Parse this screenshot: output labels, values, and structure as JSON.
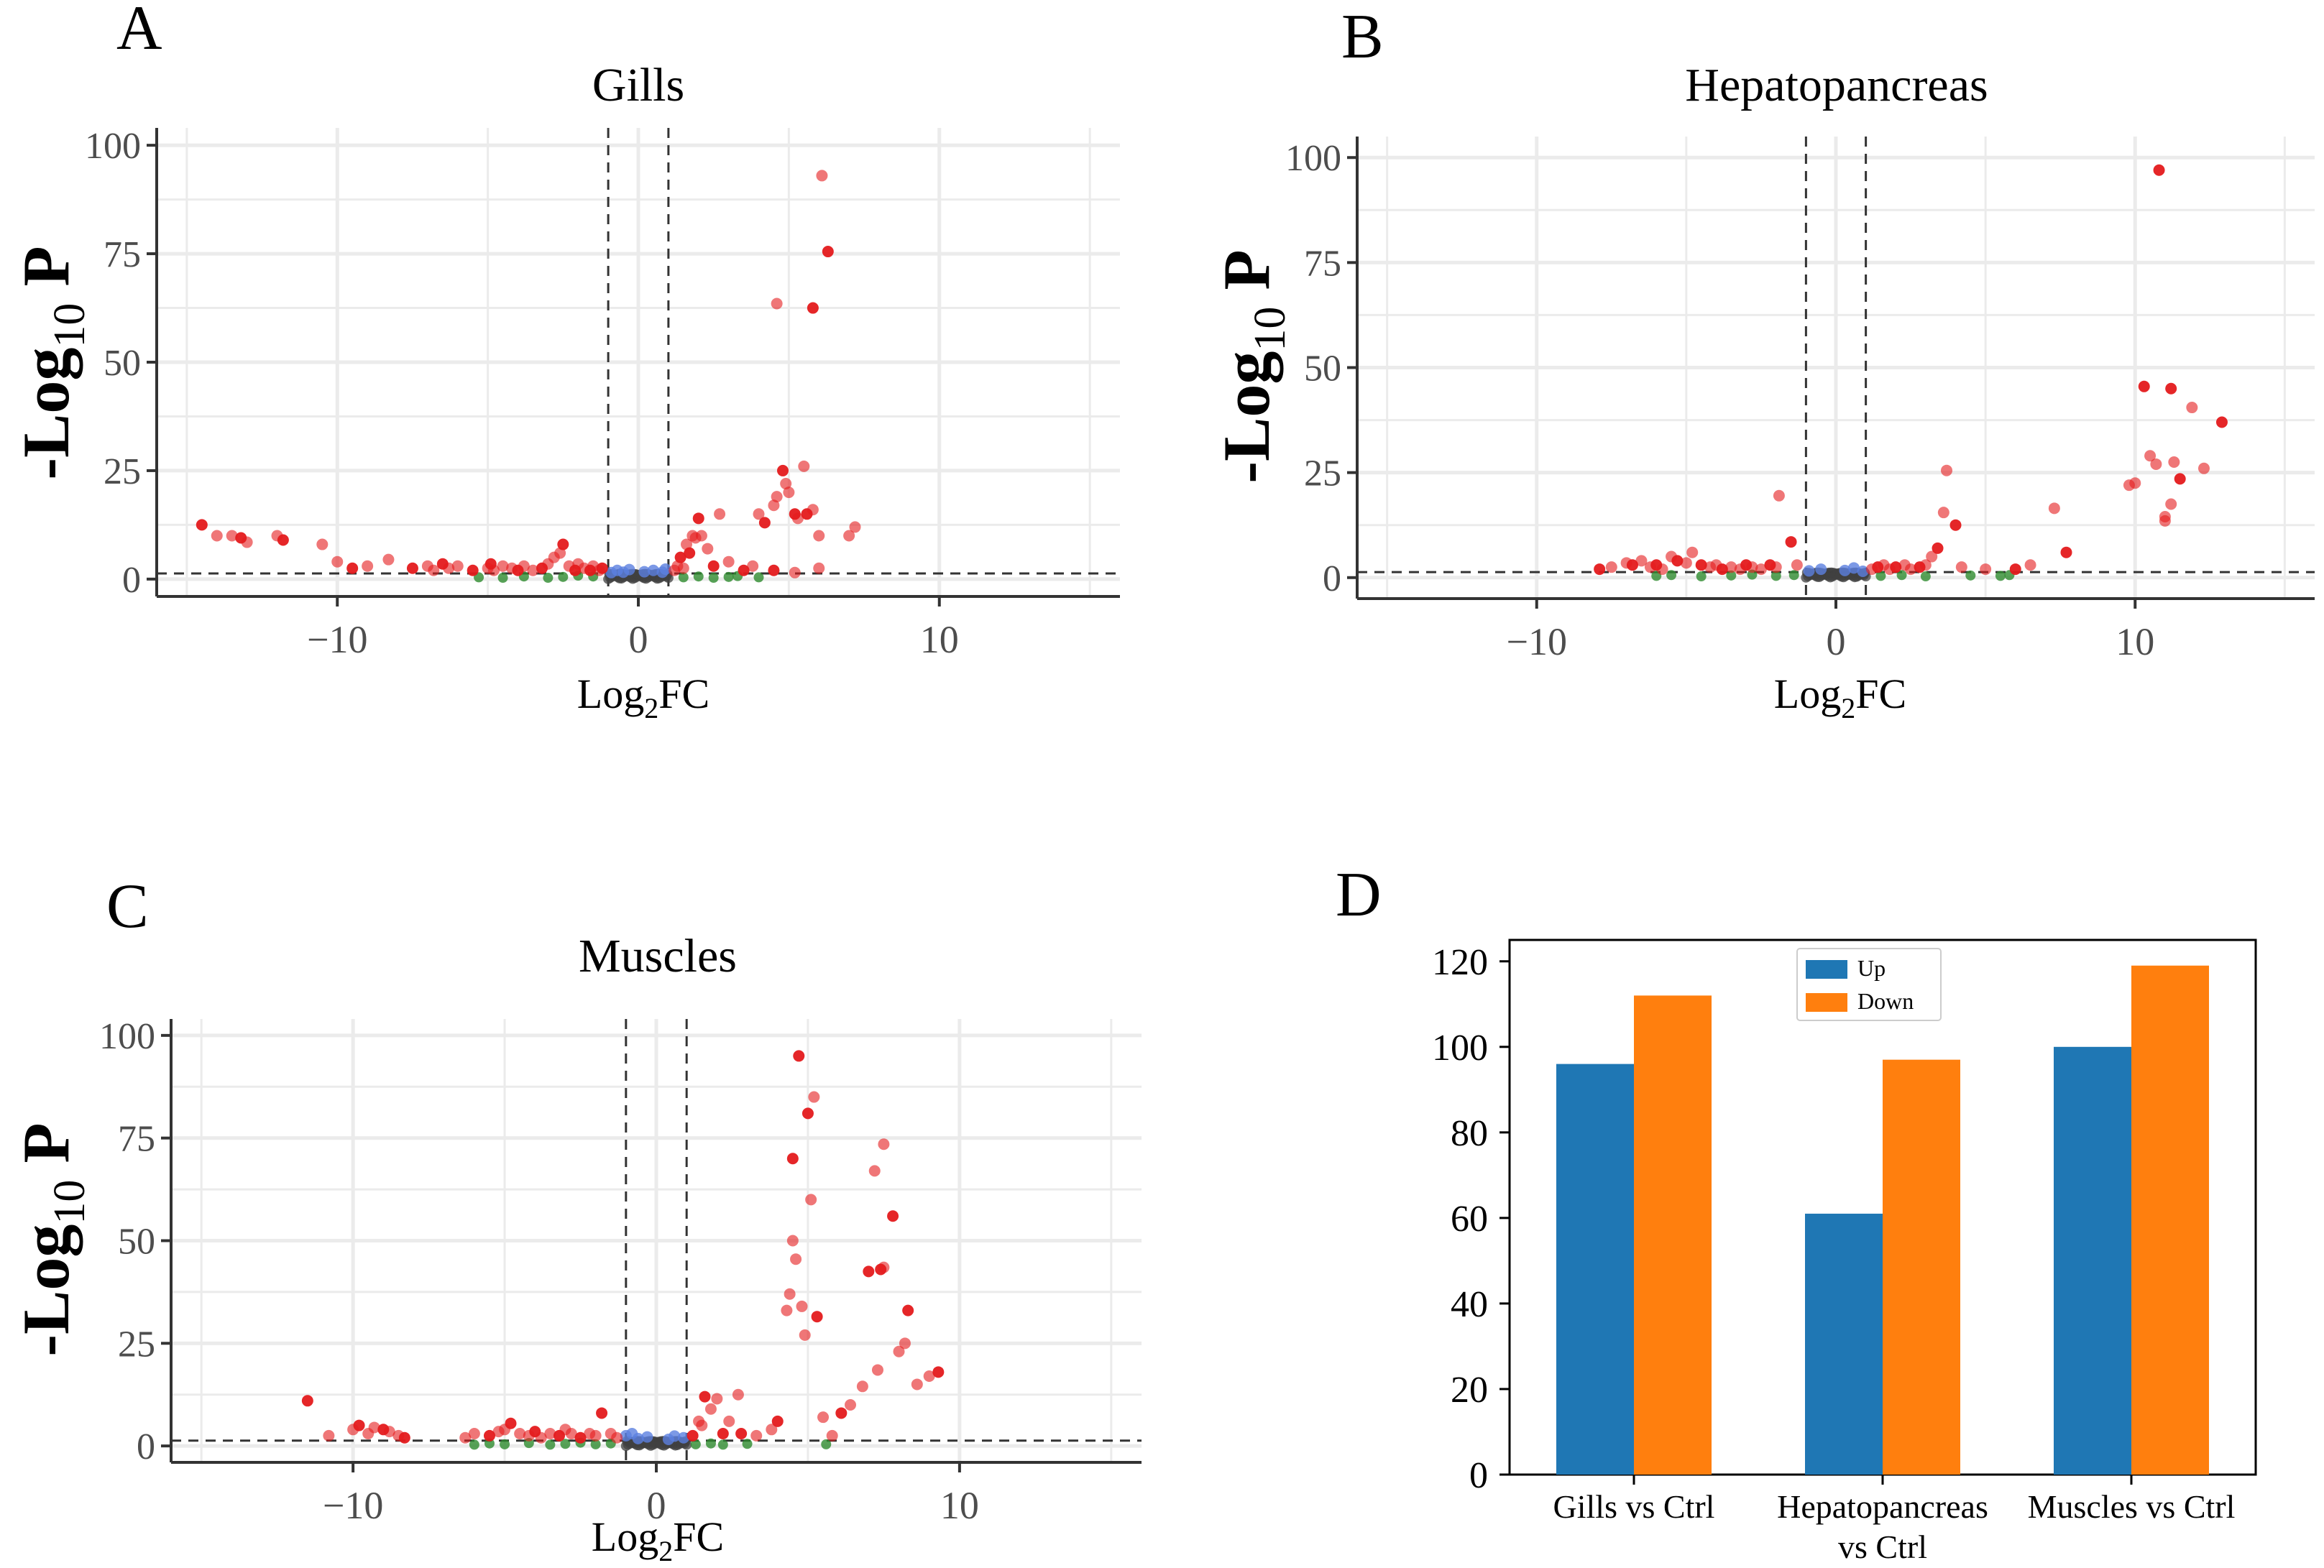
{
  "figure": {
    "panels": [
      "A",
      "B",
      "C",
      "D"
    ]
  },
  "colors": {
    "sig_up": "#e41a1c",
    "sig_fc_only": "#2e8b2e",
    "p_only": "#5b7fe0",
    "ns": "#404040",
    "bar_up": "#1f77b4",
    "bar_down": "#ff7f0e",
    "grid": "#ebebeb"
  },
  "chart_data": [
    {
      "type": "scatter",
      "panel": "A",
      "title": "Gills",
      "xlabel": "Log2FC",
      "xlabel_main": "Log",
      "xlabel_sub": "2",
      "xlabel_tail": "FC",
      "ylabel_prefix": "-Log",
      "ylabel_sub": "10",
      "ylabel_tail": "P",
      "xlim": [
        -16,
        16
      ],
      "ylim": [
        -4,
        104
      ],
      "xticks": [
        -10,
        0,
        10
      ],
      "xtick_labels": [
        "−10",
        "0",
        "10"
      ],
      "yticks": [
        0,
        25,
        50,
        75,
        100
      ],
      "ytick_labels": [
        "0",
        "25",
        "50",
        "75",
        "100"
      ],
      "fc_cutoff": [
        -1,
        1
      ],
      "p_cutoff": 1.3,
      "points": [
        [
          -14.5,
          12.5
        ],
        [
          -14,
          10
        ],
        [
          -13.5,
          10
        ],
        [
          -13.2,
          9.5
        ],
        [
          -13,
          8.5
        ],
        [
          -12,
          10
        ],
        [
          -11.8,
          9
        ],
        [
          -10.5,
          8
        ],
        [
          -10,
          4
        ],
        [
          -9.5,
          2.5
        ],
        [
          -9,
          3
        ],
        [
          -8.3,
          4.5
        ],
        [
          -7.5,
          2.5
        ],
        [
          -7,
          3
        ],
        [
          -6.8,
          2
        ],
        [
          -6.5,
          3.5
        ],
        [
          -6.3,
          2.5
        ],
        [
          -6,
          3
        ],
        [
          -5.5,
          2
        ],
        [
          -5,
          2.5
        ],
        [
          -4.8,
          2
        ],
        [
          -4.9,
          3.5
        ],
        [
          -4.5,
          3
        ],
        [
          -4.2,
          2.5
        ],
        [
          -4,
          2
        ],
        [
          -3.8,
          3
        ],
        [
          -3.5,
          2
        ],
        [
          -3.2,
          2.5
        ],
        [
          -3,
          3.5
        ],
        [
          -2.8,
          5
        ],
        [
          -2.5,
          8
        ],
        [
          -2.6,
          6
        ],
        [
          -2.3,
          3
        ],
        [
          -2.1,
          2
        ],
        [
          -2,
          3.5
        ],
        [
          -1.8,
          2.5
        ],
        [
          -1.6,
          2
        ],
        [
          -1.5,
          3
        ],
        [
          -1.3,
          2
        ],
        [
          -1.2,
          2.5
        ],
        [
          1.2,
          2
        ],
        [
          1.3,
          3
        ],
        [
          1.4,
          5
        ],
        [
          1.5,
          2.5
        ],
        [
          1.6,
          8
        ],
        [
          1.7,
          6
        ],
        [
          1.8,
          10
        ],
        [
          1.9,
          9.5
        ],
        [
          2,
          14
        ],
        [
          2.1,
          10
        ],
        [
          2.3,
          7
        ],
        [
          2.5,
          3
        ],
        [
          2.7,
          15
        ],
        [
          3,
          4
        ],
        [
          3.5,
          2
        ],
        [
          3.8,
          3
        ],
        [
          4,
          15
        ],
        [
          4.2,
          13
        ],
        [
          4.5,
          17
        ],
        [
          4.6,
          19
        ],
        [
          4.8,
          25
        ],
        [
          4.9,
          22
        ],
        [
          5,
          20
        ],
        [
          5.2,
          15
        ],
        [
          5.3,
          14
        ],
        [
          5.5,
          26
        ],
        [
          5.6,
          15
        ],
        [
          5.8,
          16
        ],
        [
          4.6,
          63.5
        ],
        [
          5.8,
          62.5
        ],
        [
          6,
          10
        ],
        [
          6.1,
          93
        ],
        [
          6.3,
          75.5
        ],
        [
          7,
          10
        ],
        [
          7.2,
          12
        ],
        [
          4.5,
          2
        ],
        [
          5.2,
          1.5
        ],
        [
          6,
          2.5
        ]
      ],
      "p_only_points": [
        [
          -0.9,
          1.5
        ],
        [
          -0.7,
          2
        ],
        [
          -0.5,
          1.6
        ],
        [
          -0.3,
          2.2
        ],
        [
          0.2,
          1.7
        ],
        [
          0.5,
          2
        ],
        [
          0.8,
          1.6
        ],
        [
          0.9,
          2.3
        ]
      ],
      "fc_only_points": [
        [
          -5.3,
          0.4
        ],
        [
          -4.5,
          0.3
        ],
        [
          -3.8,
          0.6
        ],
        [
          -3,
          0.3
        ],
        [
          -2.5,
          0.5
        ],
        [
          -2,
          0.8
        ],
        [
          -1.5,
          0.6
        ],
        [
          1.5,
          0.4
        ],
        [
          2,
          0.6
        ],
        [
          2.5,
          0.3
        ],
        [
          3,
          0.5
        ],
        [
          3.3,
          0.7
        ],
        [
          4,
          0.4
        ]
      ]
    },
    {
      "type": "scatter",
      "panel": "B",
      "title": "Hepatopancreas",
      "xlabel": "Log2FC",
      "xlabel_main": "Log",
      "xlabel_sub": "2",
      "xlabel_tail": "FC",
      "ylabel_prefix": "-Log",
      "ylabel_sub": "10",
      "ylabel_tail": "P",
      "xlim": [
        -16,
        16
      ],
      "ylim": [
        -5,
        105
      ],
      "xticks": [
        -10,
        0,
        10
      ],
      "xtick_labels": [
        "−10",
        "0",
        "10"
      ],
      "yticks": [
        0,
        25,
        50,
        75,
        100
      ],
      "ytick_labels": [
        "0",
        "25",
        "50",
        "75",
        "100"
      ],
      "fc_cutoff": [
        -1,
        1
      ],
      "p_cutoff": 1.3,
      "points": [
        [
          -7.9,
          2
        ],
        [
          -7.5,
          2.5
        ],
        [
          -7,
          3.5
        ],
        [
          -6.8,
          3
        ],
        [
          -6.5,
          4
        ],
        [
          -6.2,
          2.5
        ],
        [
          -6,
          3
        ],
        [
          -5.8,
          2
        ],
        [
          -5.5,
          5
        ],
        [
          -5.3,
          4
        ],
        [
          -5,
          3.5
        ],
        [
          -4.8,
          6
        ],
        [
          -4.5,
          3
        ],
        [
          -4.2,
          2.5
        ],
        [
          -4,
          3
        ],
        [
          -3.8,
          2
        ],
        [
          -3.5,
          2.5
        ],
        [
          -3.2,
          2
        ],
        [
          -3,
          3
        ],
        [
          -2.8,
          2.5
        ],
        [
          -2.5,
          2
        ],
        [
          -2.2,
          3
        ],
        [
          -2,
          2.5
        ],
        [
          -1.9,
          19.5
        ],
        [
          -1.5,
          8.5
        ],
        [
          -1.3,
          3
        ],
        [
          1.2,
          2
        ],
        [
          1.4,
          2.5
        ],
        [
          1.6,
          3
        ],
        [
          1.8,
          2
        ],
        [
          2,
          2.5
        ],
        [
          2.3,
          3
        ],
        [
          2.5,
          2
        ],
        [
          2.8,
          2.5
        ],
        [
          3,
          3
        ],
        [
          3.2,
          5
        ],
        [
          3.4,
          7
        ],
        [
          3.6,
          15.5
        ],
        [
          3.7,
          25.5
        ],
        [
          4,
          12.5
        ],
        [
          4.2,
          2.5
        ],
        [
          5,
          2
        ],
        [
          6,
          2
        ],
        [
          6.5,
          3
        ],
        [
          7.3,
          16.5
        ],
        [
          7.7,
          6
        ],
        [
          9.8,
          22
        ],
        [
          10,
          22.5
        ],
        [
          10.3,
          45.5
        ],
        [
          10.5,
          29
        ],
        [
          10.7,
          27
        ],
        [
          10.8,
          97
        ],
        [
          11,
          14.5
        ],
        [
          11,
          13.5
        ],
        [
          11.2,
          45
        ],
        [
          11.2,
          17.5
        ],
        [
          11.3,
          27.5
        ],
        [
          11.5,
          23.5
        ],
        [
          11.9,
          40.5
        ],
        [
          12.3,
          26
        ],
        [
          12.9,
          37
        ]
      ],
      "p_only_points": [
        [
          -0.9,
          1.6
        ],
        [
          -0.5,
          2
        ],
        [
          0.3,
          1.7
        ],
        [
          0.6,
          2.3
        ],
        [
          0.9,
          1.5
        ]
      ],
      "fc_only_points": [
        [
          -6,
          0.4
        ],
        [
          -5.5,
          0.6
        ],
        [
          -4.5,
          0.3
        ],
        [
          -3.5,
          0.5
        ],
        [
          -2.8,
          0.7
        ],
        [
          -2,
          0.4
        ],
        [
          -1.4,
          0.6
        ],
        [
          1.5,
          0.4
        ],
        [
          2.2,
          0.6
        ],
        [
          3,
          0.3
        ],
        [
          4.5,
          0.5
        ],
        [
          5.5,
          0.4
        ],
        [
          5.8,
          0.6
        ]
      ]
    },
    {
      "type": "scatter",
      "panel": "C",
      "title": "Muscles",
      "xlabel": "Log2FC",
      "xlabel_main": "Log",
      "xlabel_sub": "2",
      "xlabel_tail": "FC",
      "ylabel_prefix": "-Log",
      "ylabel_sub": "10",
      "ylabel_tail": "P",
      "xlim": [
        -16,
        16
      ],
      "ylim": [
        -4,
        104
      ],
      "xticks": [
        -10,
        0,
        10
      ],
      "xtick_labels": [
        "−10",
        "0",
        "10"
      ],
      "yticks": [
        0,
        25,
        50,
        75,
        100
      ],
      "ytick_labels": [
        "0",
        "25",
        "50",
        "75",
        "100"
      ],
      "fc_cutoff": [
        -1,
        1
      ],
      "p_cutoff": 1.3,
      "points": [
        [
          -11.5,
          11
        ],
        [
          -10.8,
          2.5
        ],
        [
          -10,
          4
        ],
        [
          -9.8,
          5
        ],
        [
          -9.5,
          3
        ],
        [
          -9.3,
          4.5
        ],
        [
          -9,
          4
        ],
        [
          -8.8,
          3.5
        ],
        [
          -8.5,
          2.5
        ],
        [
          -8.3,
          2
        ],
        [
          -6.3,
          2
        ],
        [
          -6,
          3
        ],
        [
          -5.5,
          2.5
        ],
        [
          -5.2,
          3.5
        ],
        [
          -5,
          4
        ],
        [
          -4.8,
          5.5
        ],
        [
          -4.5,
          3
        ],
        [
          -4.2,
          2.5
        ],
        [
          -4,
          3.5
        ],
        [
          -3.8,
          2
        ],
        [
          -3.5,
          3
        ],
        [
          -3.2,
          2.5
        ],
        [
          -3,
          4
        ],
        [
          -2.8,
          3
        ],
        [
          -2.5,
          2
        ],
        [
          -2.2,
          3
        ],
        [
          -2,
          2.5
        ],
        [
          -1.8,
          8
        ],
        [
          -1.5,
          3
        ],
        [
          -1.3,
          2
        ],
        [
          1.2,
          2.5
        ],
        [
          1.4,
          6
        ],
        [
          1.5,
          5
        ],
        [
          1.6,
          12
        ],
        [
          1.8,
          9
        ],
        [
          2,
          11.5
        ],
        [
          2.2,
          3
        ],
        [
          2.4,
          6
        ],
        [
          2.7,
          12.5
        ],
        [
          2.8,
          3
        ],
        [
          3.3,
          2.5
        ],
        [
          3.8,
          4
        ],
        [
          4,
          6
        ],
        [
          4.3,
          33
        ],
        [
          4.4,
          37
        ],
        [
          4.5,
          70
        ],
        [
          4.5,
          50
        ],
        [
          4.6,
          45.5
        ],
        [
          4.7,
          95
        ],
        [
          4.8,
          34
        ],
        [
          4.9,
          27
        ],
        [
          5,
          81
        ],
        [
          5.1,
          60
        ],
        [
          5.2,
          85
        ],
        [
          5.3,
          31.5
        ],
        [
          5.5,
          7
        ],
        [
          5.8,
          2.5
        ],
        [
          6.1,
          8
        ],
        [
          6.4,
          10
        ],
        [
          6.8,
          14.5
        ],
        [
          7,
          42.5
        ],
        [
          7.2,
          67
        ],
        [
          7.3,
          18.5
        ],
        [
          7.4,
          43
        ],
        [
          7.5,
          73.5
        ],
        [
          7.5,
          43.5
        ],
        [
          7.8,
          56
        ],
        [
          8,
          23
        ],
        [
          8.2,
          25
        ],
        [
          8.3,
          33
        ],
        [
          8.6,
          15
        ],
        [
          9,
          17
        ],
        [
          9.3,
          18
        ]
      ],
      "p_only_points": [
        [
          -1,
          2.5
        ],
        [
          -0.8,
          3
        ],
        [
          -0.6,
          1.8
        ],
        [
          -0.3,
          2.2
        ],
        [
          0.4,
          1.6
        ],
        [
          0.6,
          2.4
        ],
        [
          0.9,
          2
        ]
      ],
      "fc_only_points": [
        [
          -6,
          0.3
        ],
        [
          -5.5,
          0.6
        ],
        [
          -5,
          0.4
        ],
        [
          -4.2,
          0.7
        ],
        [
          -3.5,
          0.3
        ],
        [
          -3,
          0.5
        ],
        [
          -2.5,
          0.8
        ],
        [
          -2,
          0.4
        ],
        [
          -1.5,
          0.6
        ],
        [
          1.3,
          0.4
        ],
        [
          1.8,
          0.6
        ],
        [
          2.2,
          0.3
        ],
        [
          3,
          0.5
        ],
        [
          5.6,
          0.4
        ]
      ]
    },
    {
      "type": "bar",
      "panel": "D",
      "categories": [
        "Gills vs Ctrl",
        "Hepatopancreas vs Ctrl",
        "Muscles vs Ctrl"
      ],
      "category_lines": [
        [
          "Gills vs Ctrl"
        ],
        [
          "Hepatopancreas",
          "vs Ctrl"
        ],
        [
          "Muscles vs Ctrl"
        ]
      ],
      "series": [
        {
          "name": "Up",
          "values": [
            96,
            61,
            100
          ]
        },
        {
          "name": "Down",
          "values": [
            112,
            97,
            119
          ]
        }
      ],
      "ylim": [
        0,
        125
      ],
      "yticks": [
        0,
        20,
        40,
        60,
        80,
        100,
        120
      ],
      "ytick_labels": [
        "0",
        "20",
        "40",
        "60",
        "80",
        "100",
        "120"
      ],
      "legend": "top-center"
    }
  ]
}
